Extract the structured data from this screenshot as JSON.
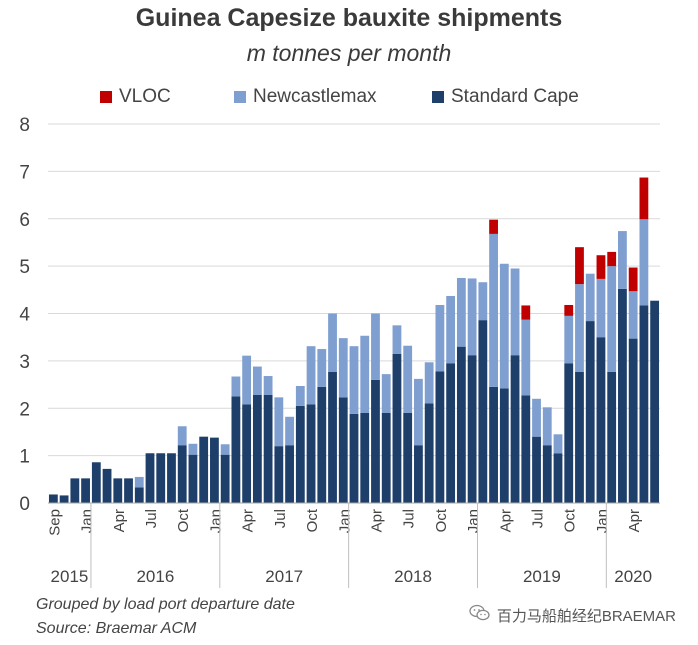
{
  "chart_data": {
    "type": "bar",
    "stacked": true,
    "title": "Guinea Capesize bauxite shipments",
    "subtitle": "m tonnes per month",
    "ylim": [
      0,
      8
    ],
    "yticks": [
      0,
      1,
      2,
      3,
      4,
      5,
      6,
      7,
      8
    ],
    "grid": true,
    "legend_position": "top",
    "legend": [
      "VLOC",
      "Newcastlemax",
      "Standard Cape"
    ],
    "categories": [
      "2015-09",
      "2015-10",
      "2015-11",
      "2015-12",
      "2016-01",
      "2016-02",
      "2016-03",
      "2016-04",
      "2016-05",
      "2016-06",
      "2016-07",
      "2016-08",
      "2016-09",
      "2016-10",
      "2016-11",
      "2016-12",
      "2017-01",
      "2017-02",
      "2017-03",
      "2017-04",
      "2017-05",
      "2017-06",
      "2017-07",
      "2017-08",
      "2017-09",
      "2017-10",
      "2017-11",
      "2017-12",
      "2018-01",
      "2018-02",
      "2018-03",
      "2018-04",
      "2018-05",
      "2018-06",
      "2018-07",
      "2018-08",
      "2018-09",
      "2018-10",
      "2018-11",
      "2018-12",
      "2019-01",
      "2019-02",
      "2019-03",
      "2019-04",
      "2019-05",
      "2019-06",
      "2019-07",
      "2019-08",
      "2019-09",
      "2019-10",
      "2019-11",
      "2019-12",
      "2020-01",
      "2020-02",
      "2020-03",
      "2020-04",
      "2020-05"
    ],
    "month_labels": [
      "Sep",
      "Jan",
      "Apr",
      "Jul",
      "Oct",
      "Jan",
      "Apr",
      "Jul",
      "Oct",
      "Jan",
      "Apr",
      "Jul",
      "Oct",
      "Jan",
      "Apr",
      "Jul",
      "Oct",
      "Jan",
      "Apr"
    ],
    "year_labels": [
      "2015",
      "2016",
      "2017",
      "2018",
      "2019",
      "2020"
    ],
    "series": [
      {
        "name": "Standard Cape",
        "color": "#1f3f6b",
        "values": [
          0.18,
          0.16,
          0.52,
          0.52,
          0.86,
          0.72,
          0.52,
          0.52,
          0.33,
          1.05,
          1.05,
          1.05,
          1.22,
          1.02,
          1.4,
          1.38,
          1.02,
          2.25,
          2.08,
          2.28,
          2.28,
          1.2,
          1.22,
          2.05,
          2.08,
          2.45,
          2.77,
          2.23,
          1.88,
          1.9,
          2.6,
          1.9,
          3.15,
          1.9,
          1.22,
          2.1,
          2.78,
          2.95,
          3.3,
          3.12,
          3.86,
          2.45,
          2.42,
          3.12,
          2.27,
          1.4,
          1.22,
          1.05,
          2.95,
          2.77,
          3.84,
          3.5,
          2.77,
          4.52,
          3.47,
          4.17,
          4.27
        ]
      },
      {
        "name": "Newcastlemax",
        "color": "#7f9fd0",
        "values": [
          0,
          0,
          0,
          0,
          0,
          0,
          0,
          0,
          0.22,
          0,
          0,
          0,
          0.4,
          0.23,
          0,
          0,
          0.22,
          0.42,
          1.03,
          0.6,
          0.4,
          1.03,
          0.6,
          0.42,
          1.23,
          0.8,
          1.23,
          1.25,
          1.43,
          1.63,
          1.4,
          0.82,
          0.6,
          1.42,
          1.4,
          0.87,
          1.4,
          1.42,
          1.45,
          1.62,
          0.8,
          3.23,
          2.63,
          1.83,
          1.6,
          0.8,
          0.8,
          0.4,
          1.0,
          1.85,
          1.0,
          1.23,
          2.23,
          1.22,
          1.0,
          1.82,
          0
        ]
      },
      {
        "name": "VLOC",
        "color": "#c00000",
        "values": [
          0,
          0,
          0,
          0,
          0,
          0,
          0,
          0,
          0,
          0,
          0,
          0,
          0,
          0,
          0,
          0,
          0,
          0,
          0,
          0,
          0,
          0,
          0,
          0,
          0,
          0,
          0,
          0,
          0,
          0,
          0,
          0,
          0,
          0,
          0,
          0,
          0,
          0,
          0,
          0,
          0,
          0.3,
          0,
          0,
          0.3,
          0,
          0,
          0,
          0.23,
          0.78,
          0,
          0.5,
          0.3,
          0,
          0.5,
          0.88,
          0
        ]
      }
    ]
  },
  "note": "Grouped by load port departure date",
  "source": "Source: Braemar ACM",
  "watermark": "百力马船舶经纪BRAEMAR",
  "watermark_icon": "wechat-icon"
}
